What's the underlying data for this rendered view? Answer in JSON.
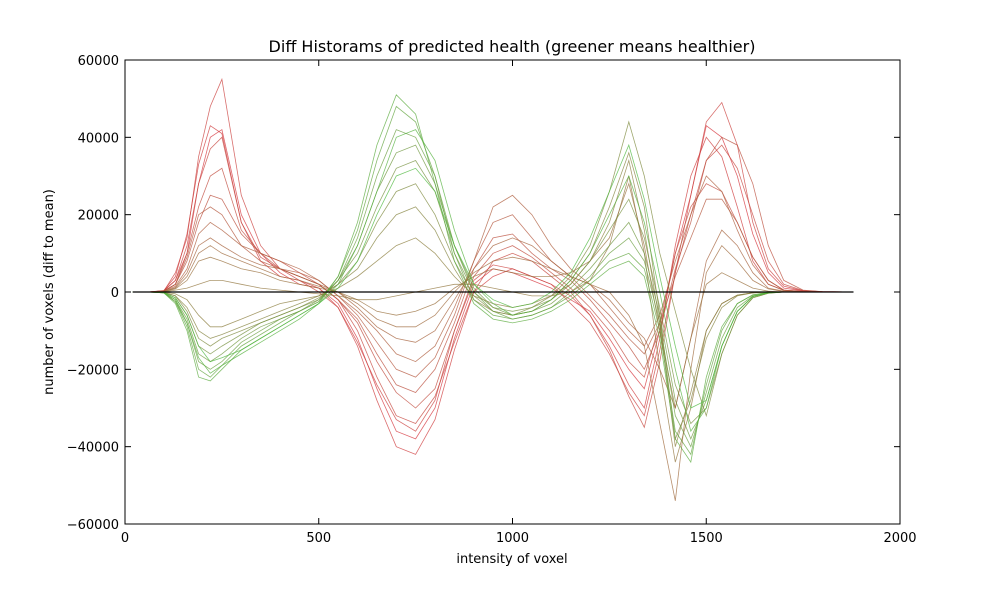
{
  "chart_data": {
    "type": "line",
    "title": "Diff Historams of predicted health (greener means healthier)",
    "xlabel": "intensity of voxel",
    "ylabel": "number of voxels (diff to mean)",
    "xlim": [
      0,
      2000
    ],
    "ylim": [
      -60000,
      60000
    ],
    "xticks": [
      0,
      500,
      1000,
      1500,
      2000
    ],
    "yticks": [
      -60000,
      -40000,
      -20000,
      0,
      20000,
      40000,
      60000
    ],
    "xtick_labels": [
      "0",
      "500",
      "1000",
      "1500",
      "2000"
    ],
    "ytick_labels": [
      "−60000",
      "−40000",
      "−20000",
      "0",
      "20000",
      "40000",
      "60000"
    ],
    "grid": false,
    "legend": "none",
    "x": [
      20,
      60,
      100,
      130,
      160,
      190,
      220,
      250,
      300,
      350,
      400,
      450,
      500,
      550,
      600,
      650,
      700,
      750,
      800,
      850,
      900,
      950,
      1000,
      1050,
      1100,
      1150,
      1200,
      1250,
      1300,
      1340,
      1380,
      1420,
      1460,
      1500,
      1540,
      1580,
      1620,
      1660,
      1700,
      1750,
      1800,
      1880
    ],
    "colors": {
      "healthy": "#4db83d",
      "unhealthy": "#d6343c",
      "mean": "#000000"
    },
    "series": [
      {
        "health": 0.0,
        "values": [
          0,
          0,
          300,
          3000,
          10000,
          28000,
          40000,
          42000,
          20000,
          10000,
          5000,
          2000,
          1000,
          -3000,
          -12000,
          -25000,
          -36000,
          -38000,
          -30000,
          -12000,
          2000,
          6000,
          5000,
          3000,
          1000,
          -2000,
          -5000,
          -12000,
          -20000,
          -25000,
          -10000,
          10000,
          25000,
          43000,
          40000,
          30000,
          15000,
          5000,
          1000,
          300,
          100,
          0
        ]
      },
      {
        "health": 0.05,
        "values": [
          0,
          0,
          400,
          4000,
          15000,
          33000,
          43000,
          41000,
          18000,
          8000,
          4000,
          3000,
          1000,
          -4000,
          -14000,
          -28000,
          -40000,
          -42000,
          -33000,
          -15000,
          0,
          4000,
          6000,
          4000,
          2000,
          -1000,
          -6000,
          -14000,
          -24000,
          -30000,
          -12000,
          12000,
          30000,
          40000,
          35000,
          22000,
          8000,
          2000,
          500,
          100,
          0,
          0
        ]
      },
      {
        "health": 0.08,
        "values": [
          0,
          0,
          200,
          5000,
          14000,
          35000,
          48000,
          55000,
          25000,
          12000,
          6000,
          3000,
          0,
          -4000,
          -13000,
          -24000,
          -33000,
          -36000,
          -28000,
          -10000,
          3000,
          7000,
          6000,
          4000,
          2000,
          -3000,
          -8000,
          -16000,
          -26000,
          -32000,
          -15000,
          5000,
          25000,
          44000,
          49000,
          38000,
          18000,
          6000,
          1500,
          300,
          100,
          0
        ]
      },
      {
        "health": 0.12,
        "values": [
          0,
          0,
          300,
          3000,
          12000,
          28000,
          37000,
          40000,
          18000,
          9000,
          6000,
          4000,
          2000,
          -2000,
          -10000,
          -22000,
          -32000,
          -34000,
          -27000,
          -13000,
          0,
          8000,
          10000,
          8000,
          4000,
          0,
          -6000,
          -15000,
          -27000,
          -35000,
          -18000,
          5000,
          20000,
          34000,
          38000,
          32000,
          20000,
          8000,
          2000,
          400,
          100,
          0
        ]
      },
      {
        "health": 0.16,
        "values": [
          0,
          0,
          200,
          2000,
          10000,
          22000,
          30000,
          32000,
          16000,
          10000,
          8000,
          5000,
          2000,
          -2000,
          -8000,
          -18000,
          -26000,
          -30000,
          -25000,
          -10000,
          4000,
          10000,
          12000,
          9000,
          5000,
          1000,
          -4000,
          -10000,
          -18000,
          -22000,
          -8000,
          10000,
          22000,
          28000,
          26000,
          18000,
          9000,
          3000,
          500,
          200,
          0,
          0
        ]
      },
      {
        "health": 0.2,
        "values": [
          0,
          0,
          300,
          2000,
          8000,
          18000,
          25000,
          24000,
          15000,
          10000,
          6000,
          4000,
          2000,
          -2000,
          -7000,
          -16000,
          -24000,
          -26000,
          -20000,
          -8000,
          6000,
          14000,
          15000,
          10000,
          6000,
          3000,
          -2000,
          -8000,
          -14000,
          -20000,
          -10000,
          6000,
          18000,
          34000,
          40000,
          38000,
          28000,
          12000,
          3000,
          500,
          100,
          0
        ]
      },
      {
        "health": 0.25,
        "values": [
          0,
          0,
          200,
          2000,
          9000,
          20000,
          22000,
          20000,
          12000,
          8000,
          6000,
          5000,
          3000,
          -1000,
          -6000,
          -13000,
          -20000,
          -22000,
          -17000,
          -6000,
          8000,
          18000,
          20000,
          14000,
          8000,
          4000,
          -1000,
          -6000,
          -12000,
          -16000,
          -8000,
          4000,
          14000,
          24000,
          24000,
          18000,
          9000,
          3000,
          500,
          100,
          0,
          0
        ]
      },
      {
        "health": 0.3,
        "values": [
          0,
          0,
          200,
          1500,
          6000,
          15000,
          18000,
          16000,
          12000,
          10000,
          8000,
          6000,
          3000,
          -1000,
          -5000,
          -10000,
          -16000,
          -18000,
          -14000,
          -4000,
          8000,
          22000,
          25000,
          20000,
          12000,
          6000,
          2000,
          -4000,
          -10000,
          -14000,
          -6000,
          8000,
          20000,
          30000,
          26000,
          16000,
          7000,
          2000,
          400,
          100,
          0,
          0
        ]
      },
      {
        "health": 0.35,
        "values": [
          0,
          0,
          100,
          1200,
          5000,
          12000,
          14000,
          12000,
          9000,
          7000,
          6000,
          4000,
          2000,
          0,
          -4000,
          -9000,
          -12000,
          -13000,
          -10000,
          -2000,
          6000,
          12000,
          14000,
          12000,
          8000,
          4000,
          2000,
          -2000,
          -8000,
          -12000,
          -20000,
          -30000,
          -12000,
          8000,
          16000,
          12000,
          5000,
          1000,
          200,
          0,
          0,
          0
        ]
      },
      {
        "health": 0.4,
        "values": [
          0,
          0,
          100,
          1000,
          4000,
          10000,
          12000,
          10000,
          8000,
          6000,
          4000,
          3000,
          1500,
          0,
          -3000,
          -7000,
          -9000,
          -9000,
          -6000,
          0,
          5000,
          8000,
          9000,
          8000,
          6000,
          4000,
          2000,
          0,
          -6000,
          -14000,
          -34000,
          -54000,
          -20000,
          5000,
          12000,
          8000,
          3000,
          800,
          100,
          0,
          0,
          0
        ]
      },
      {
        "health": 0.45,
        "values": [
          0,
          0,
          100,
          800,
          3000,
          8000,
          9000,
          8000,
          6000,
          5000,
          3000,
          2000,
          1000,
          0,
          -2000,
          -5000,
          -6000,
          -5000,
          -3000,
          1000,
          4000,
          6000,
          5000,
          4000,
          4000,
          5000,
          8000,
          14000,
          28000,
          12000,
          -10000,
          -30000,
          -12000,
          2000,
          5000,
          3000,
          1000,
          200,
          0,
          0,
          0,
          0
        ]
      },
      {
        "health": 0.5,
        "values": [
          0,
          0,
          50,
          500,
          1000,
          2000,
          3000,
          3000,
          2000,
          1000,
          500,
          0,
          -500,
          -1000,
          -2000,
          -2000,
          -1000,
          0,
          1000,
          2000,
          2000,
          1000,
          0,
          -1000,
          -1000,
          0,
          3000,
          12000,
          30000,
          10000,
          -20000,
          -44000,
          -30000,
          -10000,
          -3000,
          -800,
          -200,
          0,
          0,
          0,
          0,
          0
        ]
      },
      {
        "health": 0.55,
        "values": [
          0,
          0,
          0,
          -500,
          -2000,
          -6000,
          -9000,
          -9000,
          -7000,
          -5000,
          -3000,
          -2000,
          -1000,
          1000,
          4000,
          8000,
          12000,
          14000,
          10000,
          4000,
          -1000,
          -3000,
          -4000,
          -3000,
          -1000,
          2000,
          8000,
          18000,
          34000,
          16000,
          -8000,
          -40000,
          -26000,
          -10000,
          -3000,
          -800,
          -200,
          0,
          0,
          0,
          0,
          0
        ]
      },
      {
        "health": 0.6,
        "values": [
          0,
          0,
          -100,
          -1000,
          -4000,
          -10000,
          -12000,
          -11000,
          -9000,
          -7000,
          -5000,
          -3000,
          -1000,
          2000,
          6000,
          14000,
          20000,
          22000,
          16000,
          6000,
          -2000,
          -5000,
          -6000,
          -5000,
          -2000,
          3000,
          10000,
          22000,
          36000,
          22000,
          -6000,
          -38000,
          -28000,
          -12000,
          -4000,
          -1000,
          -200,
          0,
          0,
          0,
          0,
          0
        ]
      },
      {
        "health": 0.65,
        "values": [
          0,
          0,
          -100,
          -1000,
          -5000,
          -12000,
          -14000,
          -12000,
          -10000,
          -8000,
          -6000,
          -4000,
          -1500,
          2000,
          8000,
          18000,
          26000,
          28000,
          20000,
          8000,
          -1000,
          -5000,
          -6000,
          -4000,
          -1000,
          4000,
          12000,
          26000,
          44000,
          30000,
          10000,
          -5000,
          -20000,
          -32000,
          -16000,
          -6000,
          -1500,
          -300,
          0,
          0,
          0,
          0
        ]
      },
      {
        "health": 0.7,
        "values": [
          0,
          0,
          -100,
          -1500,
          -6000,
          -14000,
          -16000,
          -14000,
          -11000,
          -8000,
          -6000,
          -4000,
          -2000,
          3000,
          10000,
          22000,
          32000,
          34000,
          26000,
          10000,
          0,
          -4000,
          -5000,
          -4000,
          -2000,
          2000,
          8000,
          16000,
          24000,
          14000,
          -4000,
          -24000,
          -34000,
          -30000,
          -16000,
          -6000,
          -1500,
          -300,
          0,
          0,
          0,
          0
        ]
      },
      {
        "health": 0.75,
        "values": [
          0,
          0,
          -200,
          -2000,
          -7000,
          -16000,
          -18000,
          -16000,
          -12000,
          -9000,
          -7000,
          -5000,
          -2000,
          3000,
          12000,
          26000,
          36000,
          38000,
          28000,
          12000,
          1000,
          -4000,
          -6000,
          -5000,
          -3000,
          1000,
          6000,
          12000,
          18000,
          10000,
          -6000,
          -28000,
          -38000,
          -28000,
          -14000,
          -5000,
          -1200,
          -200,
          0,
          0,
          0,
          0
        ]
      },
      {
        "health": 0.8,
        "values": [
          0,
          0,
          -200,
          -2500,
          -8000,
          -18000,
          -20000,
          -18000,
          -13000,
          -10000,
          -7000,
          -5000,
          -2500,
          3000,
          14000,
          30000,
          42000,
          40000,
          30000,
          12000,
          0,
          -5000,
          -7000,
          -6000,
          -4000,
          0,
          4000,
          10000,
          14000,
          8000,
          -8000,
          -32000,
          -40000,
          -26000,
          -12000,
          -4000,
          -1000,
          -200,
          0,
          0,
          0,
          0
        ]
      },
      {
        "health": 0.85,
        "values": [
          0,
          0,
          -200,
          -2500,
          -9000,
          -20000,
          -22000,
          -19000,
          -14000,
          -11000,
          -8000,
          -5000,
          -2500,
          4000,
          16000,
          34000,
          48000,
          44000,
          30000,
          10000,
          -2000,
          -6000,
          -7000,
          -6000,
          -4000,
          -1000,
          3000,
          8000,
          10000,
          6000,
          -10000,
          -36000,
          -42000,
          -24000,
          -10000,
          -3000,
          -800,
          -100,
          0,
          0,
          0,
          0
        ]
      },
      {
        "health": 0.9,
        "values": [
          0,
          0,
          -200,
          -3000,
          -10000,
          -22000,
          -23000,
          -20000,
          -15000,
          -12000,
          -9000,
          -6000,
          -3000,
          4000,
          18000,
          38000,
          51000,
          46000,
          28000,
          8000,
          -3000,
          -7000,
          -8000,
          -7000,
          -5000,
          -2000,
          2000,
          6000,
          8000,
          4000,
          -12000,
          -38000,
          -44000,
          -22000,
          -9000,
          -3000,
          -700,
          -100,
          0,
          0,
          0,
          0
        ]
      },
      {
        "health": 0.95,
        "values": [
          0,
          0,
          -150,
          -2000,
          -8000,
          -17000,
          -21000,
          -19000,
          -16000,
          -13000,
          -10000,
          -7000,
          -3000,
          2000,
          12000,
          26000,
          40000,
          42000,
          34000,
          16000,
          2000,
          -3000,
          -6000,
          -5000,
          -2000,
          3000,
          10000,
          20000,
          30000,
          18000,
          0,
          -20000,
          -36000,
          -30000,
          -14000,
          -5000,
          -1200,
          -200,
          0,
          0,
          0,
          0
        ]
      },
      {
        "health": 1.0,
        "values": [
          0,
          0,
          -100,
          -1500,
          -6000,
          -14000,
          -18000,
          -17000,
          -15000,
          -12000,
          -9000,
          -6000,
          -3000,
          1000,
          8000,
          20000,
          30000,
          32000,
          26000,
          12000,
          2000,
          -2000,
          -4000,
          -3000,
          0,
          5000,
          14000,
          26000,
          38000,
          24000,
          4000,
          -14000,
          -30000,
          -28000,
          -14000,
          -5000,
          -1200,
          -200,
          0,
          0,
          0,
          0
        ]
      }
    ],
    "mean_line": {
      "values_x": [
        20,
        1880
      ],
      "values_y": [
        0,
        0
      ]
    }
  }
}
